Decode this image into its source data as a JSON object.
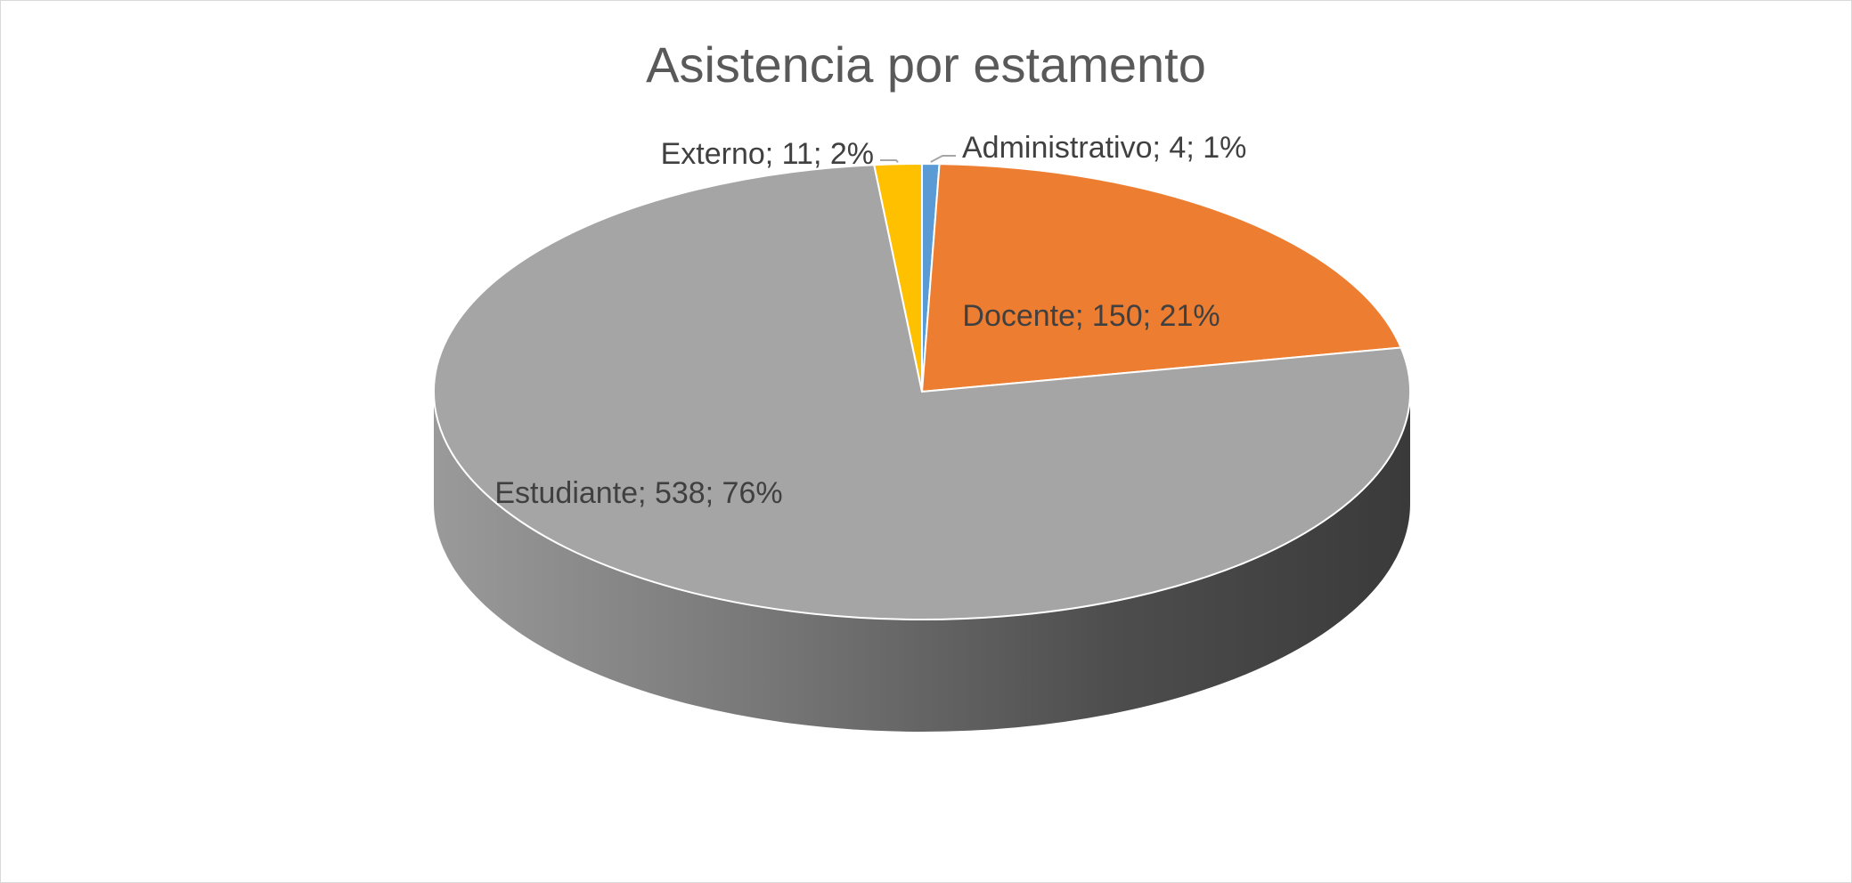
{
  "chart_data": {
    "type": "pie",
    "style": "3d",
    "title": "Asistencia por estamento",
    "slices": [
      {
        "label": "Administrativo",
        "value": 4,
        "percent": "1%",
        "color": "#5b9bd5",
        "data_label": "Administrativo; 4; 1%"
      },
      {
        "label": "Docente",
        "value": 150,
        "percent": "21%",
        "color": "#ed7d31",
        "data_label": "Docente; 150; 21%"
      },
      {
        "label": "Estudiante",
        "value": 538,
        "percent": "76%",
        "color": "#a5a5a5",
        "data_label": "Estudiante; 538; 76%"
      },
      {
        "label": "Externo",
        "value": 11,
        "percent": "2%",
        "color": "#ffc000",
        "data_label": "Externo; 11; 2%"
      }
    ],
    "legend": "none",
    "start_angle": "12 o'clock, clockwise"
  }
}
